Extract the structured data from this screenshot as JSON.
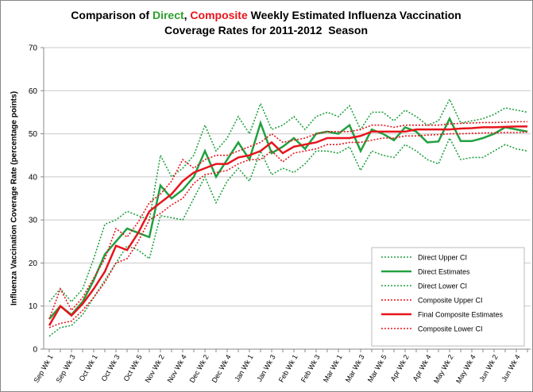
{
  "chart_data": {
    "type": "line",
    "title_lines": [
      [
        {
          "text": "Comparison of "
        },
        {
          "text": "Direct",
          "color": "#2ca02c"
        },
        {
          "text": ", "
        },
        {
          "text": "Composite",
          "color": "#e8141c"
        },
        {
          "text": " Weekly Estimated Influenza Vaccination"
        }
      ],
      [
        {
          "text": "Coverage Rates for 2011-2012  Season"
        }
      ]
    ],
    "ylabel": "Influenza  Vaccination Coverage Rate (percentage points)",
    "categories": [
      "Sep Wk 1",
      null,
      "Sep Wk 3",
      null,
      "Oct Wk 1",
      null,
      "Oct Wk 3",
      null,
      "Oct Wk 5",
      null,
      "Nov Wk 2",
      null,
      "Nov Wk 4",
      null,
      "Dec Wk 2",
      null,
      "Dec Wk 4",
      null,
      "Jan Wk 1",
      null,
      "Jan Wk 3",
      null,
      "Feb Wk 1",
      null,
      "Feb Wk 3",
      null,
      "Mar Wk 1",
      null,
      "Mar Wk 3",
      null,
      "Mar Wk 5",
      null,
      "Apr Wk 2",
      null,
      "Apr Wk 4",
      null,
      "May Wk 2",
      null,
      "May Wk 4",
      null,
      "Jun Wk 2",
      null,
      "Jun Wk 4",
      null
    ],
    "ylim": [
      0,
      70
    ],
    "yticks": [
      0,
      10,
      20,
      30,
      40,
      50,
      60,
      70
    ],
    "grid": true,
    "legend": "lower right",
    "series": [
      {
        "name": "Direct Upper CI",
        "color": "#22a040",
        "dash": true,
        "values": [
          11,
          14,
          11,
          14,
          21,
          29,
          30,
          32,
          31,
          30,
          45,
          40,
          42,
          45,
          52,
          46,
          49,
          54,
          50,
          57,
          51,
          52,
          54,
          51,
          54,
          55,
          54,
          56.5,
          51,
          55,
          55,
          53,
          55.5,
          54,
          52,
          53,
          58,
          52.5,
          53,
          53.5,
          54.5,
          56,
          55.5,
          55
        ]
      },
      {
        "name": "Direct Estimates",
        "color": "#22a040",
        "dash": false,
        "values": [
          7,
          10,
          8,
          11,
          16,
          22,
          25,
          28,
          27,
          26,
          38,
          35,
          37,
          40,
          46,
          40,
          44,
          48,
          44,
          52.5,
          45.5,
          47,
          49,
          46.5,
          50,
          50.5,
          50,
          52,
          46,
          51,
          50,
          48.5,
          51.5,
          50.5,
          48,
          48.2,
          53.5,
          48.3,
          48.3,
          49,
          50,
          51.5,
          51,
          50.5
        ]
      },
      {
        "name": "Direct Lower CI",
        "color": "#22a040",
        "dash": true,
        "values": [
          3,
          5,
          5.5,
          8,
          12,
          16,
          20,
          24,
          23,
          21,
          31,
          30.5,
          30,
          35,
          40,
          34,
          39,
          42,
          39,
          46,
          40.5,
          42,
          41,
          43,
          46,
          46,
          45.5,
          47,
          41.5,
          46,
          45,
          44.5,
          47.5,
          46,
          44,
          43,
          49,
          44,
          44.5,
          44.5,
          46,
          47.5,
          46.5,
          46
        ]
      },
      {
        "name": "Composite Upper CI",
        "color": "#e8141c",
        "dash": true,
        "values": [
          7,
          14,
          9,
          12,
          16.5,
          21,
          28,
          26,
          29.5,
          34,
          36,
          39,
          44,
          42,
          44,
          45,
          45,
          46,
          47,
          48,
          50,
          48,
          48.5,
          49,
          50,
          50.5,
          50.5,
          50.5,
          51,
          52,
          52,
          51.5,
          52,
          52,
          52,
          52,
          52.3,
          52.4,
          52.5,
          52.6,
          52.6,
          52.7,
          52.8,
          52.8
        ]
      },
      {
        "name": "Final Composite Estimates",
        "color": "#e8141c",
        "dash": false,
        "values": [
          5.5,
          10,
          7.8,
          10.5,
          14,
          18,
          24,
          23,
          27,
          32,
          34,
          36,
          39,
          41,
          42,
          43,
          43,
          44.5,
          45,
          46,
          48,
          45.5,
          47,
          47.5,
          48,
          49,
          49,
          49,
          49.5,
          50.5,
          50.5,
          50.5,
          50.5,
          51,
          51,
          51,
          51,
          51.2,
          51.3,
          51.5,
          51.5,
          51.6,
          51.7,
          51.7
        ]
      },
      {
        "name": "Composite Lower CI",
        "color": "#e8141c",
        "dash": true,
        "values": [
          5,
          6,
          6.5,
          9,
          12,
          15.5,
          20,
          21,
          25,
          30,
          31.5,
          33.5,
          35,
          38.5,
          40.5,
          41,
          41.5,
          43,
          44,
          44,
          46,
          43.5,
          45.5,
          46,
          46.5,
          47.5,
          47.5,
          48,
          48,
          48.5,
          49,
          49,
          49.5,
          49.5,
          49.7,
          49.8,
          50,
          50,
          50.1,
          50.2,
          50.2,
          50.3,
          50.3,
          50.4
        ]
      }
    ]
  }
}
